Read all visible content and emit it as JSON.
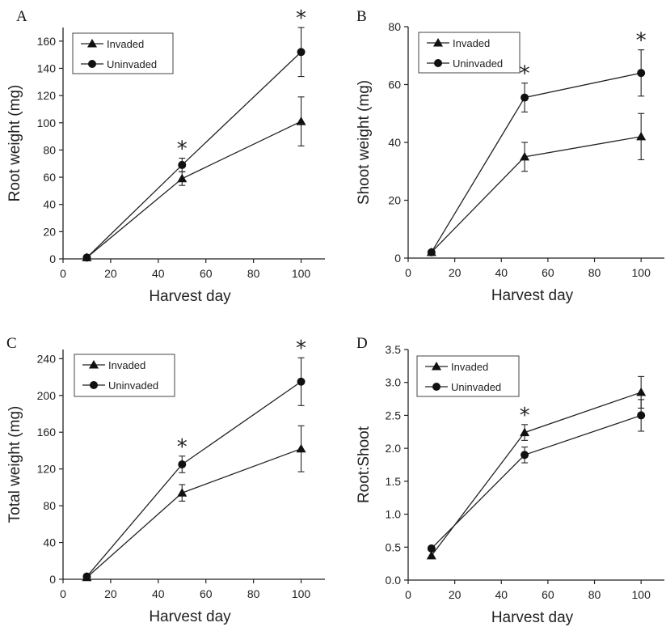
{
  "chart_data": [
    {
      "type": "line",
      "panel": "A",
      "xlabel": "Harvest day",
      "ylabel": "Root weight (mg)",
      "xlim": [
        0,
        110
      ],
      "ylim": [
        0,
        170
      ],
      "xticks": [
        0,
        20,
        40,
        60,
        80,
        100
      ],
      "yticks": [
        0,
        20,
        40,
        60,
        80,
        100,
        120,
        140,
        160
      ],
      "legend": "top-left",
      "x": [
        10,
        50,
        100
      ],
      "series": [
        {
          "name": "Invaded",
          "marker": "triangle",
          "values": [
            1,
            59,
            101
          ],
          "errors": [
            0,
            5,
            18
          ]
        },
        {
          "name": "Uninvaded",
          "marker": "circle",
          "values": [
            1,
            69,
            152
          ],
          "errors": [
            0,
            5,
            18
          ]
        }
      ],
      "annotations": [
        {
          "x": 50,
          "text": "*"
        },
        {
          "x": 100,
          "text": "*"
        }
      ]
    },
    {
      "type": "line",
      "panel": "B",
      "xlabel": "Harvest day",
      "ylabel": "Shoot weight (mg)",
      "xlim": [
        0,
        110
      ],
      "ylim": [
        0,
        80
      ],
      "xticks": [
        0,
        20,
        40,
        60,
        80,
        100
      ],
      "yticks": [
        0,
        20,
        40,
        60,
        80
      ],
      "legend": "top-left",
      "x": [
        10,
        50,
        100
      ],
      "series": [
        {
          "name": "Invaded",
          "marker": "triangle",
          "values": [
            2,
            35,
            42
          ],
          "errors": [
            0,
            5,
            8
          ]
        },
        {
          "name": "Uninvaded",
          "marker": "circle",
          "values": [
            2,
            55.5,
            64
          ],
          "errors": [
            0,
            5,
            8
          ]
        }
      ],
      "annotations": [
        {
          "x": 50,
          "text": "*"
        },
        {
          "x": 100,
          "text": "*"
        }
      ]
    },
    {
      "type": "line",
      "panel": "C",
      "xlabel": "Harvest day",
      "ylabel": "Total weight (mg)",
      "xlim": [
        0,
        110
      ],
      "ylim": [
        0,
        250
      ],
      "xticks": [
        0,
        20,
        40,
        60,
        80,
        100
      ],
      "yticks": [
        0,
        40,
        80,
        120,
        160,
        200,
        240
      ],
      "legend": "top-left",
      "x": [
        10,
        50,
        100
      ],
      "series": [
        {
          "name": "Invaded",
          "marker": "triangle",
          "values": [
            2,
            94,
            142
          ],
          "errors": [
            0,
            9,
            25
          ]
        },
        {
          "name": "Uninvaded",
          "marker": "circle",
          "values": [
            3,
            125,
            215
          ],
          "errors": [
            0,
            9,
            26
          ]
        }
      ],
      "annotations": [
        {
          "x": 50,
          "text": "*"
        },
        {
          "x": 100,
          "text": "*"
        }
      ]
    },
    {
      "type": "line",
      "panel": "D",
      "xlabel": "Harvest day",
      "ylabel": "Root:Shoot",
      "xlim": [
        0,
        110
      ],
      "ylim": [
        0,
        3.5
      ],
      "xticks": [
        0,
        20,
        40,
        60,
        80,
        100
      ],
      "yticks": [
        0,
        0.5,
        1.0,
        1.5,
        2.0,
        2.5,
        3.0,
        3.5
      ],
      "ytick_labels": [
        "0.0",
        "0.5",
        "1.0",
        "1.5",
        "2.0",
        "2.5",
        "3.0",
        "3.5"
      ],
      "legend": "top-left",
      "x": [
        10,
        50,
        100
      ],
      "series": [
        {
          "name": "Invaded",
          "marker": "triangle",
          "values": [
            0.37,
            2.24,
            2.85
          ],
          "errors": [
            0,
            0.12,
            0.24
          ]
        },
        {
          "name": "Uninvaded",
          "marker": "circle",
          "values": [
            0.48,
            1.9,
            2.5
          ],
          "errors": [
            0,
            0.12,
            0.24
          ]
        }
      ],
      "annotations": [
        {
          "x": 50,
          "text": "*"
        }
      ]
    }
  ]
}
